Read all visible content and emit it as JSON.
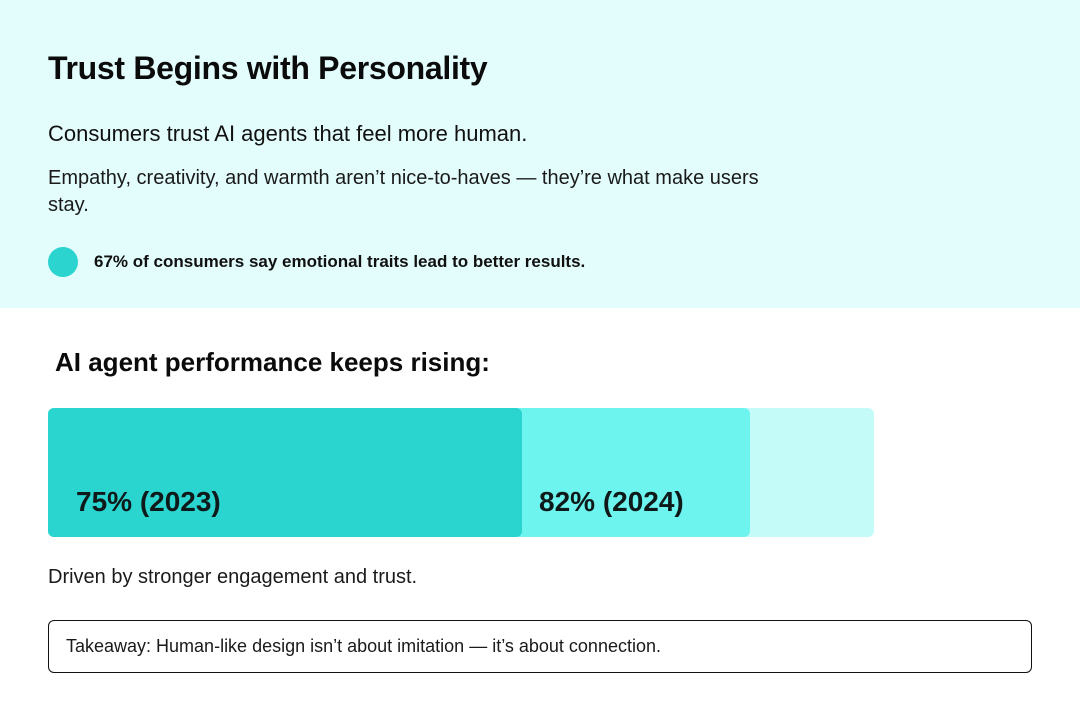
{
  "header": {
    "title": "Trust Begins with Personality",
    "subtitle": "Consumers trust AI agents that feel more human.",
    "body": "Empathy, creativity, and warmth aren’t nice-to-haves — they’re what make users stay.",
    "stat": "67% of consumers say emotional traits lead to better results."
  },
  "colors": {
    "background_top": "#e3fcfc",
    "dot": "#2bd4cf",
    "bar_2023": "#2ad4cf",
    "bar_2024": "#6ef4ee",
    "bar_remainder": "#c4fbf8"
  },
  "chart_data": {
    "type": "bar",
    "orientation": "horizontal-overlapping",
    "title": "AI agent performance keeps rising:",
    "categories": [
      "2023",
      "2024"
    ],
    "values": [
      75,
      82
    ],
    "labels": [
      "75% (2023)",
      "82% (2024)"
    ],
    "xlim": [
      0,
      100
    ]
  },
  "caption": "Driven by stronger engagement and trust.",
  "takeaway": "Takeaway: Human-like design isn’t about imitation — it’s about connection."
}
